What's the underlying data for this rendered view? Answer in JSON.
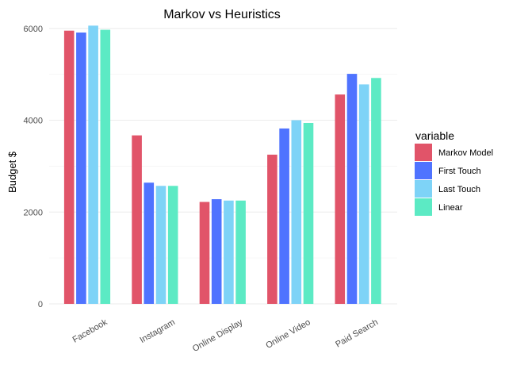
{
  "chart_data": {
    "type": "bar",
    "title": "Markov vs Heuristics",
    "xlabel": "",
    "ylabel": "Budget $",
    "ylim": [
      0,
      6100
    ],
    "y_ticks": [
      0,
      2000,
      4000,
      6000
    ],
    "y_tick_labels": [
      "0",
      "2000",
      "4000",
      "6000"
    ],
    "grid": true,
    "legend_position": "right",
    "legend_title": "variable",
    "categories": [
      "Facebook",
      "Instagram",
      "Online Display",
      "Online Video",
      "Paid Search"
    ],
    "series": [
      {
        "name": "Markov Model",
        "color": "#e15469",
        "values": [
          5950,
          3670,
          2220,
          3250,
          4560
        ]
      },
      {
        "name": "First Touch",
        "color": "#4f73ff",
        "values": [
          5910,
          2640,
          2280,
          3820,
          5010
        ]
      },
      {
        "name": "Last Touch",
        "color": "#7ed3f7",
        "values": [
          6060,
          2570,
          2250,
          4000,
          4780
        ]
      },
      {
        "name": "Linear",
        "color": "#5ceac4",
        "values": [
          5970,
          2570,
          2250,
          3940,
          4920
        ]
      }
    ]
  }
}
